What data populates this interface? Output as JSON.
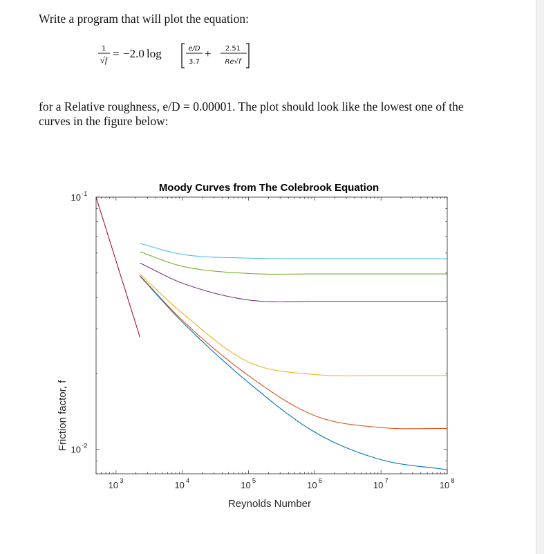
{
  "instructions": {
    "intro": "Write a program that will plot the equation:",
    "context": "for a Relative roughness, e/D = 0.00001. The plot should look like the lowest one of the curves in the figure below:"
  },
  "equation": {
    "lhs_numerator": "1",
    "lhs_denominator": "√f",
    "equals": "=",
    "coefficient": "−2.0",
    "log": "log",
    "term1_numerator": "e/D",
    "term1_denominator": "3.7",
    "plus": "+",
    "term2_numerator": "2.51",
    "term2_denominator": "Re√f"
  },
  "chart_data": {
    "type": "line",
    "title": "Moody Curves from The Colebrook Equation",
    "xlabel": "Reynolds Number",
    "ylabel": "Friction factor, f",
    "x_scale": "log",
    "y_scale": "log",
    "xlim": [
      500,
      100000000
    ],
    "ylim": [
      0.008,
      0.1
    ],
    "x_ticks": [
      {
        "base": "10",
        "exp": "3",
        "value": 1000
      },
      {
        "base": "10",
        "exp": "4",
        "value": 10000
      },
      {
        "base": "10",
        "exp": "5",
        "value": 100000
      },
      {
        "base": "10",
        "exp": "6",
        "value": 1000000
      },
      {
        "base": "10",
        "exp": "7",
        "value": 10000000
      },
      {
        "base": "10",
        "exp": "8",
        "value": 100000000
      }
    ],
    "y_ticks": [
      {
        "base": "10",
        "exp": "-1",
        "value": 0.1
      },
      {
        "base": "10",
        "exp": "-2",
        "value": 0.01
      }
    ],
    "grid": false,
    "series": [
      {
        "color": "#a2142f",
        "x": [
          500,
          2300
        ],
        "y": [
          0.1,
          0.0278
        ]
      },
      {
        "color": "#4dbeee",
        "x": [
          2300,
          10000,
          100000,
          1000000,
          100000000
        ],
        "y": [
          0.0655,
          0.0593,
          0.0573,
          0.057,
          0.057
        ]
      },
      {
        "color": "#77ac30",
        "x": [
          2300,
          10000,
          100000,
          1000000,
          100000000
        ],
        "y": [
          0.0607,
          0.0532,
          0.0498,
          0.0496,
          0.0496
        ]
      },
      {
        "color": "#7e2f8e",
        "x": [
          2300,
          10000,
          100000,
          1000000,
          100000000
        ],
        "y": [
          0.0548,
          0.0456,
          0.0391,
          0.0386,
          0.0386
        ]
      },
      {
        "color": "#edb120",
        "x": [
          2300,
          10000,
          100000,
          1000000,
          10000000,
          100000000
        ],
        "y": [
          0.0495,
          0.0347,
          0.0222,
          0.0198,
          0.0196,
          0.0196
        ]
      },
      {
        "color": "#d95319",
        "x": [
          2300,
          10000,
          100000,
          1000000,
          10000000,
          100000000
        ],
        "y": [
          0.0488,
          0.0325,
          0.0196,
          0.0136,
          0.0122,
          0.0121
        ]
      },
      {
        "color": "#0072bd",
        "x": [
          2300,
          10000,
          100000,
          1000000,
          10000000,
          100000000
        ],
        "y": [
          0.0486,
          0.032,
          0.0184,
          0.0117,
          0.0091,
          0.0083
        ]
      }
    ]
  }
}
